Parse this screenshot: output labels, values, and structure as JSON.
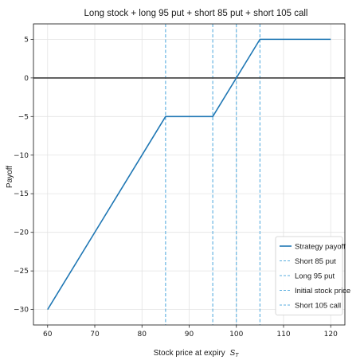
{
  "chart_data": {
    "type": "line",
    "title": "Long stock + long 95 put + short 85 put + short 105 call",
    "xlabel": "Stock price at expiry",
    "xlabel_sub": "T",
    "xlabel_var": "S",
    "ylabel": "Payoff",
    "xlim": [
      57,
      123
    ],
    "ylim": [
      -32,
      7
    ],
    "xticks": [
      60,
      70,
      80,
      90,
      100,
      110,
      120
    ],
    "yticks": [
      5,
      0,
      -5,
      -10,
      -15,
      -20,
      -25,
      -30
    ],
    "ytick_labels": [
      "5",
      "0",
      "−5",
      "−10",
      "−15",
      "−20",
      "−25",
      "−30"
    ],
    "grid": true,
    "legend_position": "lower-right",
    "series": [
      {
        "name": "Strategy payoff",
        "x": [
          60,
          85,
          95,
          105,
          120
        ],
        "y": [
          -30,
          -5,
          -5,
          5,
          5
        ],
        "color": "#1f77b4"
      }
    ],
    "vlines": [
      {
        "name": "Short 85 put",
        "x": 85,
        "color": "#5aaedf"
      },
      {
        "name": "Long 95 put",
        "x": 95,
        "color": "#5aaedf"
      },
      {
        "name": "Initial stock price",
        "x": 100,
        "color": "#5aaedf"
      },
      {
        "name": "Short 105 call",
        "x": 105,
        "color": "#5aaedf"
      }
    ],
    "hline": {
      "y": 0,
      "color": "#4a4a4a"
    }
  }
}
